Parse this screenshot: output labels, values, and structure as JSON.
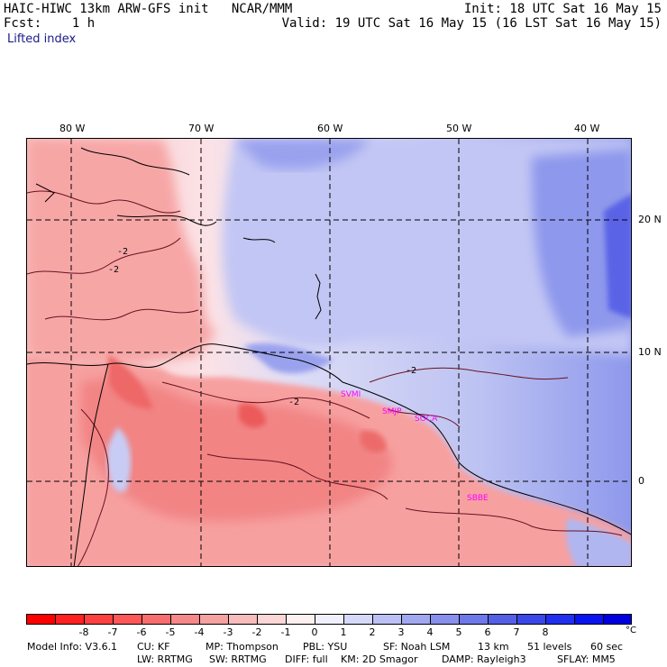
{
  "header": {
    "title_left": "HAIC-HIWC 13km ARW-GFS init   NCAR/MMM",
    "forecast": "Fcst:    1 h",
    "init": "Init: 18 UTC Sat 16 May 15",
    "valid": "Valid: 19 UTC Sat 16 May 15 (16 LST Sat 16 May 15)",
    "field_name": "Lifted index"
  },
  "map": {
    "lon_labels": [
      "80 W",
      "70 W",
      "60 W",
      "50 W",
      "40 W"
    ],
    "lat_labels": [
      "20 N",
      "10 N",
      "0"
    ],
    "contour_label": "-2",
    "city_labels": [
      "SVMI",
      "SMJP",
      "SOCA",
      "SBBE"
    ],
    "colors": {
      "deep_red": "#f06060",
      "mid_red": "#f59090",
      "light_red": "#f8b8b8",
      "pale": "#fbe0e0",
      "light_blue": "#c8ccf4",
      "mid_blue": "#9ea6ee",
      "deep_blue": "#5a64e6",
      "coast": "#000000",
      "contour": "#6a1020",
      "grid": "#000000"
    }
  },
  "colorbar": {
    "colors": [
      "#ff0000",
      "#ff2020",
      "#ff4040",
      "#fc5858",
      "#f86e6e",
      "#f58888",
      "#f4a2a2",
      "#f7bcbc",
      "#fad6d6",
      "#fdf0f0",
      "#f0f0fd",
      "#d6d8f8",
      "#bcc0f4",
      "#a2a8f0",
      "#8890ec",
      "#6e78e8",
      "#5460e4",
      "#3a48e8",
      "#2030ee",
      "#0a14f0",
      "#0000e0"
    ],
    "tick_labels": [
      "-8",
      "-7",
      "-6",
      "-5",
      "-4",
      "-3",
      "-2",
      "-1",
      "0",
      "1",
      "2",
      "3",
      "4",
      "5",
      "6",
      "7",
      "8"
    ],
    "unit": "°C"
  },
  "footer": {
    "line1": [
      "Model Info: V3.6.1",
      "CU: KF",
      "MP: Thompson",
      "PBL: YSU",
      "SF: Noah LSM",
      "13 km",
      "51 levels",
      "60 sec"
    ],
    "line2": [
      "LW: RRTMG",
      "SW: RRTMG",
      "DIFF: full",
      "KM: 2D Smagor",
      "DAMP: Rayleigh3",
      "SFLAY: MM5"
    ]
  }
}
